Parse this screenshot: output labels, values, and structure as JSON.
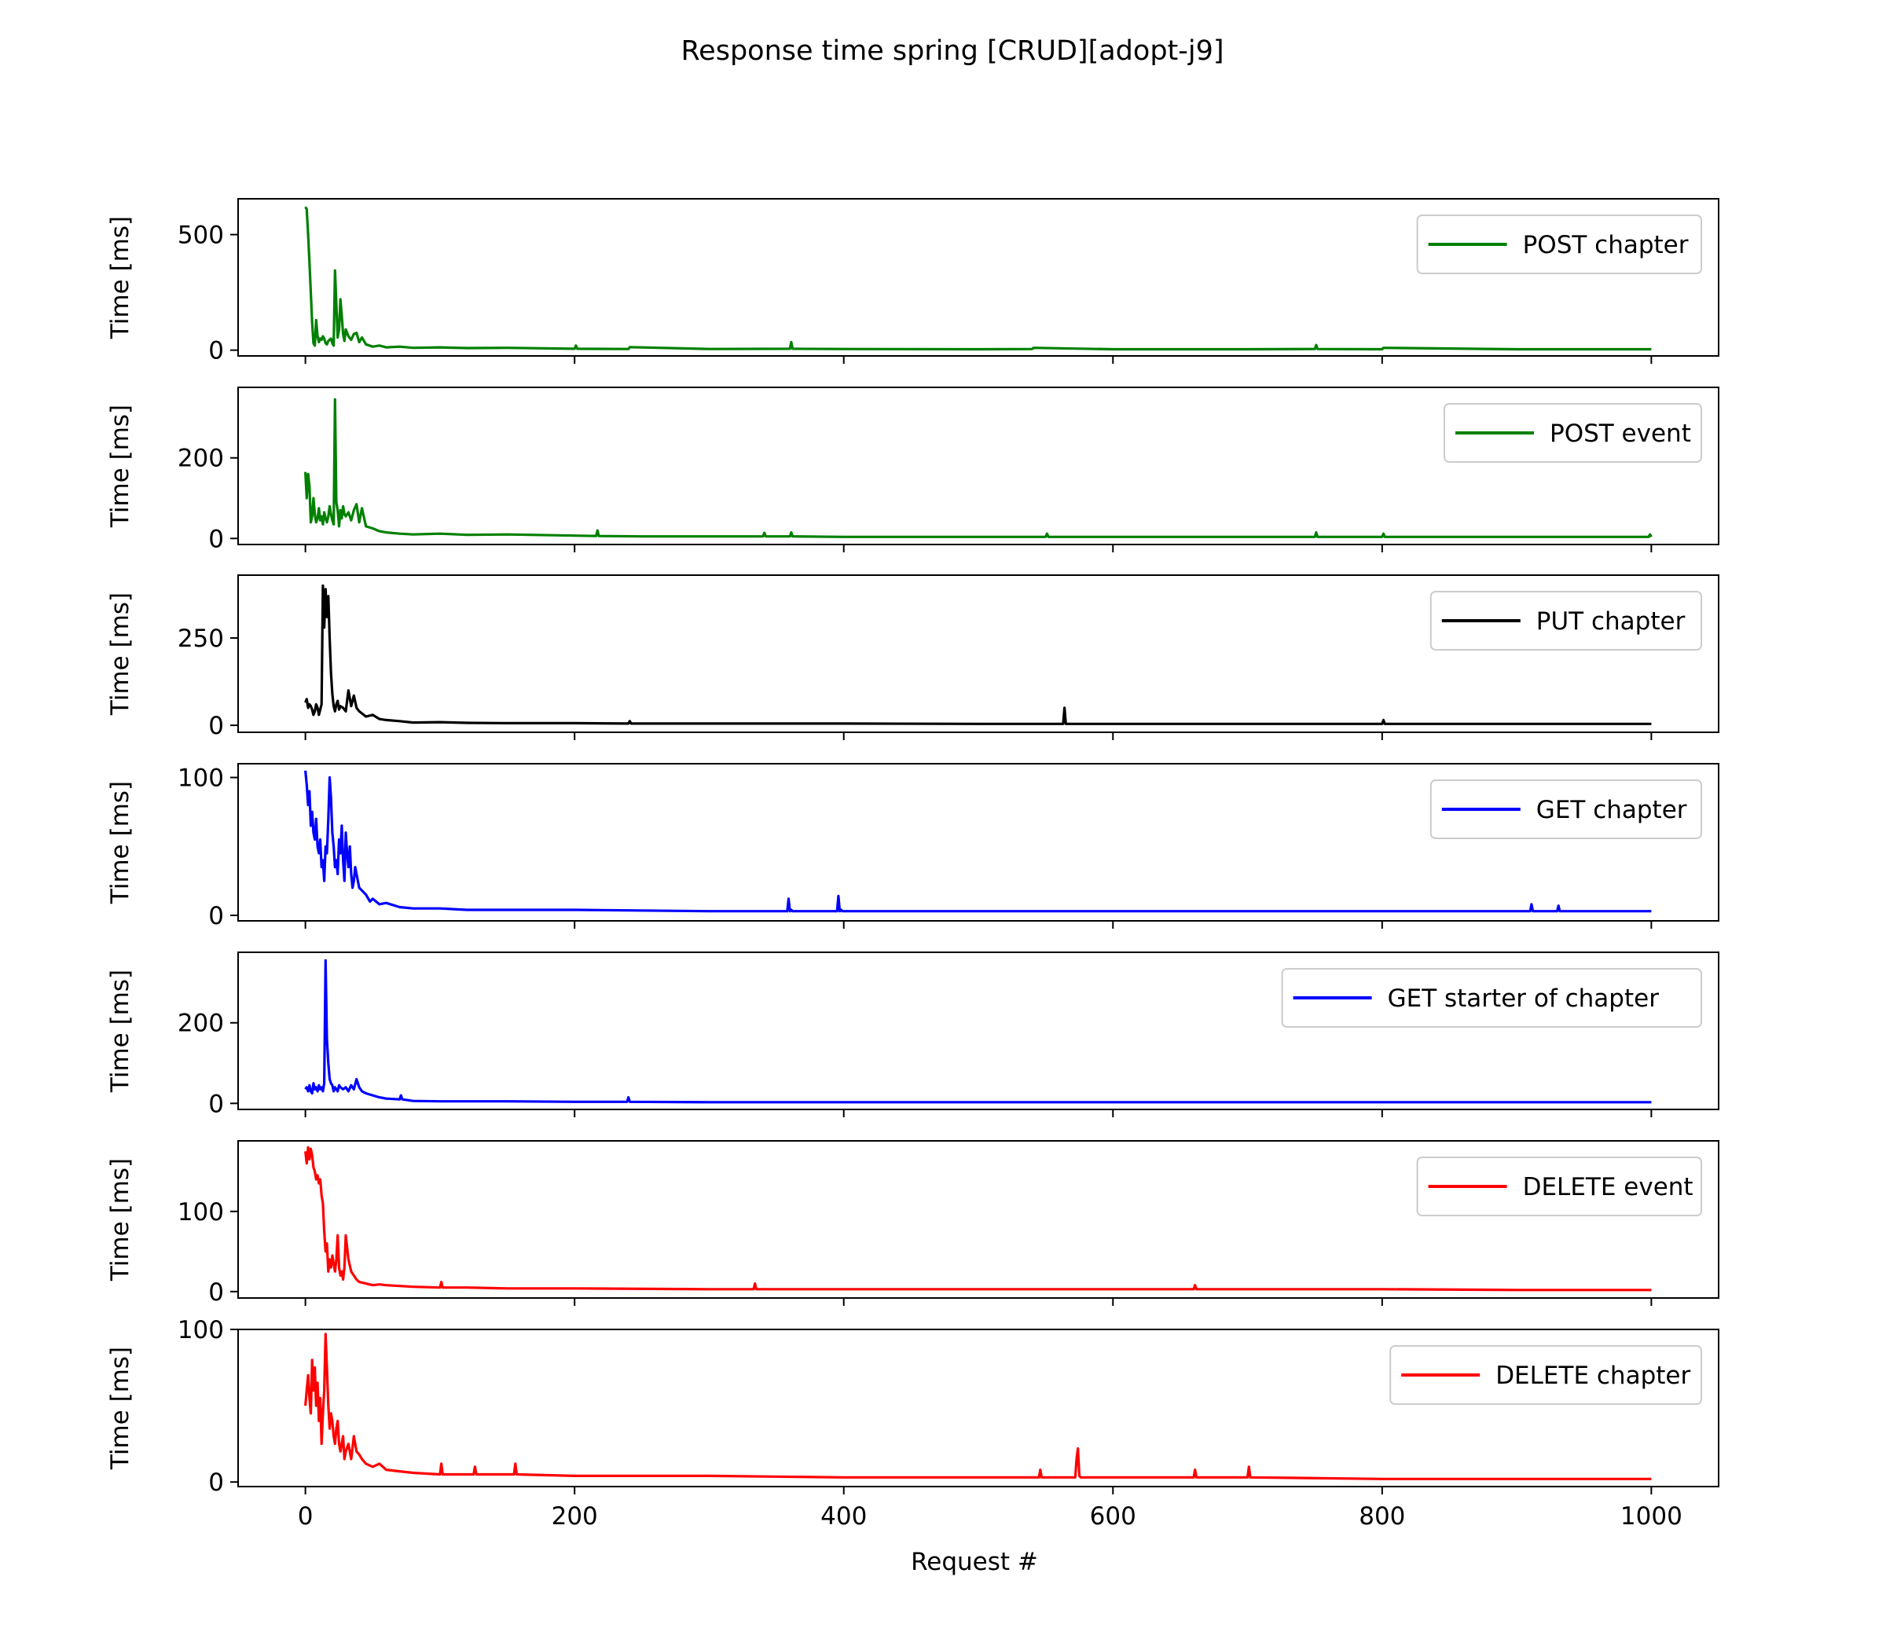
{
  "chart_data": {
    "type": "line",
    "title": "Response time spring [CRUD][adopt-j9]",
    "xlabel": "Request #",
    "x_ticks": [
      0,
      200,
      400,
      600,
      800,
      1000
    ],
    "xlim": [
      -50,
      1050
    ],
    "legend_position": "upper right",
    "grid": false,
    "panels": [
      {
        "name": "POST chapter",
        "color": "#008000",
        "ylabel": "Time [ms]",
        "ylim": [
          -25,
          655
        ],
        "y_ticks": [
          0,
          500
        ],
        "x": [
          0,
          1,
          2,
          3,
          4,
          5,
          6,
          7,
          8,
          9,
          10,
          11,
          12,
          13,
          14,
          15,
          16,
          17,
          18,
          19,
          20,
          21,
          22,
          23,
          24,
          25,
          26,
          27,
          28,
          29,
          30,
          32,
          34,
          36,
          38,
          40,
          42,
          45,
          50,
          55,
          60,
          70,
          80,
          100,
          120,
          150,
          200,
          201,
          202,
          240,
          241,
          300,
          360,
          361,
          362,
          400,
          500,
          540,
          541,
          600,
          700,
          750,
          751,
          752,
          800,
          801,
          900,
          1000
        ],
        "y": [
          620,
          610,
          500,
          380,
          250,
          120,
          30,
          20,
          130,
          60,
          35,
          50,
          45,
          60,
          50,
          30,
          25,
          40,
          45,
          50,
          30,
          20,
          345,
          200,
          55,
          90,
          220,
          150,
          70,
          40,
          90,
          60,
          45,
          70,
          75,
          35,
          55,
          25,
          15,
          20,
          12,
          15,
          10,
          12,
          9,
          10,
          6,
          20,
          6,
          5,
          13,
          5,
          6,
          35,
          6,
          5,
          4,
          5,
          10,
          4,
          4,
          5,
          22,
          5,
          4,
          10,
          4,
          4
        ]
      },
      {
        "name": "POST event",
        "color": "#008000",
        "ylabel": "Time [ms]",
        "ylim": [
          -15,
          375
        ],
        "y_ticks": [
          0,
          200
        ],
        "x": [
          0,
          1,
          2,
          3,
          4,
          5,
          6,
          7,
          8,
          9,
          10,
          11,
          12,
          13,
          14,
          15,
          16,
          17,
          18,
          19,
          20,
          21,
          22,
          23,
          24,
          25,
          26,
          27,
          28,
          29,
          30,
          32,
          34,
          36,
          38,
          40,
          42,
          45,
          50,
          55,
          60,
          70,
          80,
          100,
          120,
          150,
          200,
          216,
          217,
          218,
          250,
          300,
          340,
          341,
          342,
          360,
          361,
          362,
          400,
          500,
          550,
          551,
          552,
          600,
          700,
          750,
          751,
          752,
          800,
          801,
          802,
          900,
          998,
          999,
          1000
        ],
        "y": [
          165,
          100,
          160,
          130,
          40,
          55,
          100,
          60,
          40,
          50,
          75,
          45,
          55,
          35,
          65,
          50,
          40,
          55,
          80,
          60,
          45,
          35,
          345,
          90,
          70,
          30,
          70,
          50,
          80,
          60,
          55,
          65,
          45,
          70,
          85,
          40,
          75,
          30,
          25,
          18,
          15,
          12,
          10,
          12,
          9,
          10,
          7,
          6,
          20,
          6,
          5,
          5,
          5,
          14,
          5,
          5,
          15,
          5,
          4,
          4,
          4,
          12,
          4,
          4,
          4,
          4,
          15,
          4,
          4,
          12,
          4,
          4,
          4,
          10,
          4
        ]
      },
      {
        "name": "PUT chapter",
        "color": "#000000",
        "ylabel": "Time [ms]",
        "ylim": [
          -20,
          430
        ],
        "y_ticks": [
          0,
          250
        ],
        "x": [
          0,
          1,
          2,
          3,
          4,
          5,
          6,
          7,
          8,
          9,
          10,
          11,
          12,
          13,
          14,
          15,
          16,
          17,
          18,
          19,
          20,
          21,
          22,
          23,
          24,
          25,
          26,
          28,
          30,
          32,
          34,
          36,
          38,
          40,
          45,
          50,
          55,
          60,
          70,
          80,
          100,
          120,
          150,
          200,
          240,
          241,
          242,
          300,
          400,
          500,
          563,
          564,
          565,
          600,
          700,
          800,
          801,
          802,
          900,
          1000
        ],
        "y": [
          65,
          75,
          50,
          60,
          55,
          45,
          30,
          40,
          60,
          50,
          30,
          45,
          60,
          400,
          280,
          390,
          310,
          370,
          250,
          150,
          90,
          55,
          40,
          60,
          70,
          45,
          55,
          50,
          40,
          100,
          55,
          85,
          50,
          40,
          25,
          30,
          18,
          15,
          12,
          8,
          9,
          7,
          6,
          6,
          5,
          12,
          5,
          5,
          5,
          4,
          4,
          50,
          4,
          4,
          4,
          4,
          15,
          4,
          4,
          4
        ]
      },
      {
        "name": "GET chapter",
        "color": "#0000ff",
        "ylabel": "Time [ms]",
        "ylim": [
          -4,
          110
        ],
        "y_ticks": [
          0,
          100
        ],
        "x": [
          0,
          1,
          2,
          3,
          4,
          5,
          6,
          7,
          8,
          9,
          10,
          11,
          12,
          13,
          14,
          15,
          16,
          17,
          18,
          19,
          20,
          21,
          22,
          23,
          24,
          25,
          26,
          27,
          28,
          29,
          30,
          31,
          32,
          33,
          34,
          35,
          36,
          37,
          38,
          40,
          42,
          45,
          48,
          50,
          55,
          60,
          70,
          80,
          100,
          120,
          150,
          200,
          300,
          358,
          359,
          360,
          361,
          362,
          395,
          396,
          397,
          398,
          399,
          500,
          600,
          700,
          800,
          900,
          910,
          911,
          912,
          920,
          930,
          931,
          932,
          1000
        ],
        "y": [
          105,
          95,
          80,
          90,
          65,
          75,
          60,
          55,
          70,
          50,
          45,
          55,
          35,
          40,
          25,
          50,
          45,
          70,
          100,
          85,
          60,
          50,
          35,
          40,
          30,
          55,
          45,
          65,
          40,
          25,
          60,
          45,
          35,
          50,
          30,
          20,
          25,
          35,
          30,
          20,
          18,
          15,
          10,
          12,
          8,
          9,
          6,
          5,
          5,
          4,
          4,
          4,
          3,
          3,
          12,
          3,
          4,
          3,
          3,
          14,
          3,
          4,
          3,
          3,
          3,
          3,
          3,
          3,
          3,
          8,
          3,
          3,
          3,
          7,
          3,
          3
        ]
      },
      {
        "name": "GET starter of chapter",
        "color": "#0000ff",
        "ylabel": "Time [ms]",
        "ylim": [
          -15,
          375
        ],
        "y_ticks": [
          0,
          200
        ],
        "x": [
          0,
          1,
          2,
          3,
          4,
          5,
          6,
          7,
          8,
          9,
          10,
          11,
          12,
          13,
          14,
          15,
          16,
          17,
          18,
          19,
          20,
          21,
          22,
          23,
          24,
          25,
          26,
          28,
          30,
          32,
          34,
          36,
          38,
          40,
          42,
          45,
          50,
          55,
          60,
          70,
          71,
          72,
          80,
          100,
          150,
          200,
          239,
          240,
          241,
          300,
          400,
          500,
          600,
          700,
          800,
          900,
          1000
        ],
        "y": [
          35,
          40,
          30,
          45,
          30,
          25,
          50,
          35,
          40,
          30,
          45,
          35,
          40,
          30,
          50,
          355,
          160,
          100,
          60,
          50,
          45,
          30,
          40,
          35,
          30,
          45,
          40,
          35,
          40,
          30,
          45,
          35,
          60,
          40,
          30,
          25,
          20,
          15,
          12,
          10,
          20,
          10,
          6,
          5,
          5,
          4,
          4,
          15,
          4,
          3,
          3,
          3,
          3,
          3,
          3,
          3,
          3
        ]
      },
      {
        "name": "DELETE event",
        "color": "#ff0000",
        "ylabel": "Time [ms]",
        "ylim": [
          -8,
          188
        ],
        "y_ticks": [
          0,
          100
        ],
        "x": [
          0,
          1,
          2,
          3,
          4,
          5,
          6,
          7,
          8,
          9,
          10,
          11,
          12,
          13,
          14,
          15,
          16,
          17,
          18,
          19,
          20,
          21,
          22,
          23,
          24,
          25,
          26,
          27,
          28,
          29,
          30,
          32,
          34,
          36,
          38,
          40,
          45,
          50,
          55,
          60,
          70,
          80,
          100,
          101,
          102,
          120,
          150,
          200,
          300,
          333,
          334,
          335,
          400,
          500,
          600,
          660,
          661,
          662,
          700,
          800,
          900,
          1000
        ],
        "y": [
          175,
          160,
          180,
          165,
          178,
          170,
          155,
          150,
          140,
          145,
          135,
          140,
          120,
          110,
          75,
          50,
          60,
          25,
          40,
          30,
          45,
          35,
          25,
          40,
          70,
          30,
          20,
          25,
          15,
          30,
          70,
          40,
          25,
          20,
          15,
          12,
          10,
          8,
          9,
          8,
          7,
          6,
          5,
          12,
          5,
          5,
          4,
          4,
          3,
          3,
          10,
          3,
          3,
          3,
          3,
          3,
          8,
          3,
          3,
          3,
          2,
          2
        ]
      },
      {
        "name": "DELETE chapter",
        "color": "#ff0000",
        "ylabel": "Time [ms]",
        "ylim": [
          -3,
          100
        ],
        "y_ticks": [
          0,
          100
        ],
        "x": [
          0,
          1,
          2,
          3,
          4,
          5,
          6,
          7,
          8,
          9,
          10,
          11,
          12,
          13,
          14,
          15,
          16,
          17,
          18,
          19,
          20,
          21,
          22,
          23,
          24,
          25,
          26,
          27,
          28,
          29,
          30,
          32,
          34,
          36,
          38,
          40,
          42,
          45,
          50,
          55,
          60,
          70,
          80,
          100,
          101,
          102,
          125,
          126,
          127,
          155,
          156,
          157,
          200,
          300,
          400,
          500,
          545,
          546,
          547,
          572,
          573,
          574,
          575,
          576,
          600,
          660,
          661,
          662,
          700,
          701,
          702,
          800,
          900,
          1000
        ],
        "y": [
          50,
          60,
          70,
          55,
          45,
          80,
          60,
          75,
          50,
          65,
          40,
          55,
          25,
          45,
          60,
          97,
          75,
          50,
          35,
          45,
          40,
          30,
          25,
          35,
          40,
          25,
          20,
          25,
          30,
          15,
          20,
          25,
          15,
          30,
          20,
          18,
          15,
          12,
          10,
          12,
          8,
          7,
          6,
          5,
          12,
          5,
          5,
          10,
          5,
          5,
          12,
          5,
          4,
          4,
          3,
          3,
          3,
          8,
          3,
          3,
          15,
          22,
          4,
          3,
          3,
          3,
          8,
          3,
          3,
          10,
          3,
          2,
          2,
          2
        ]
      }
    ]
  }
}
